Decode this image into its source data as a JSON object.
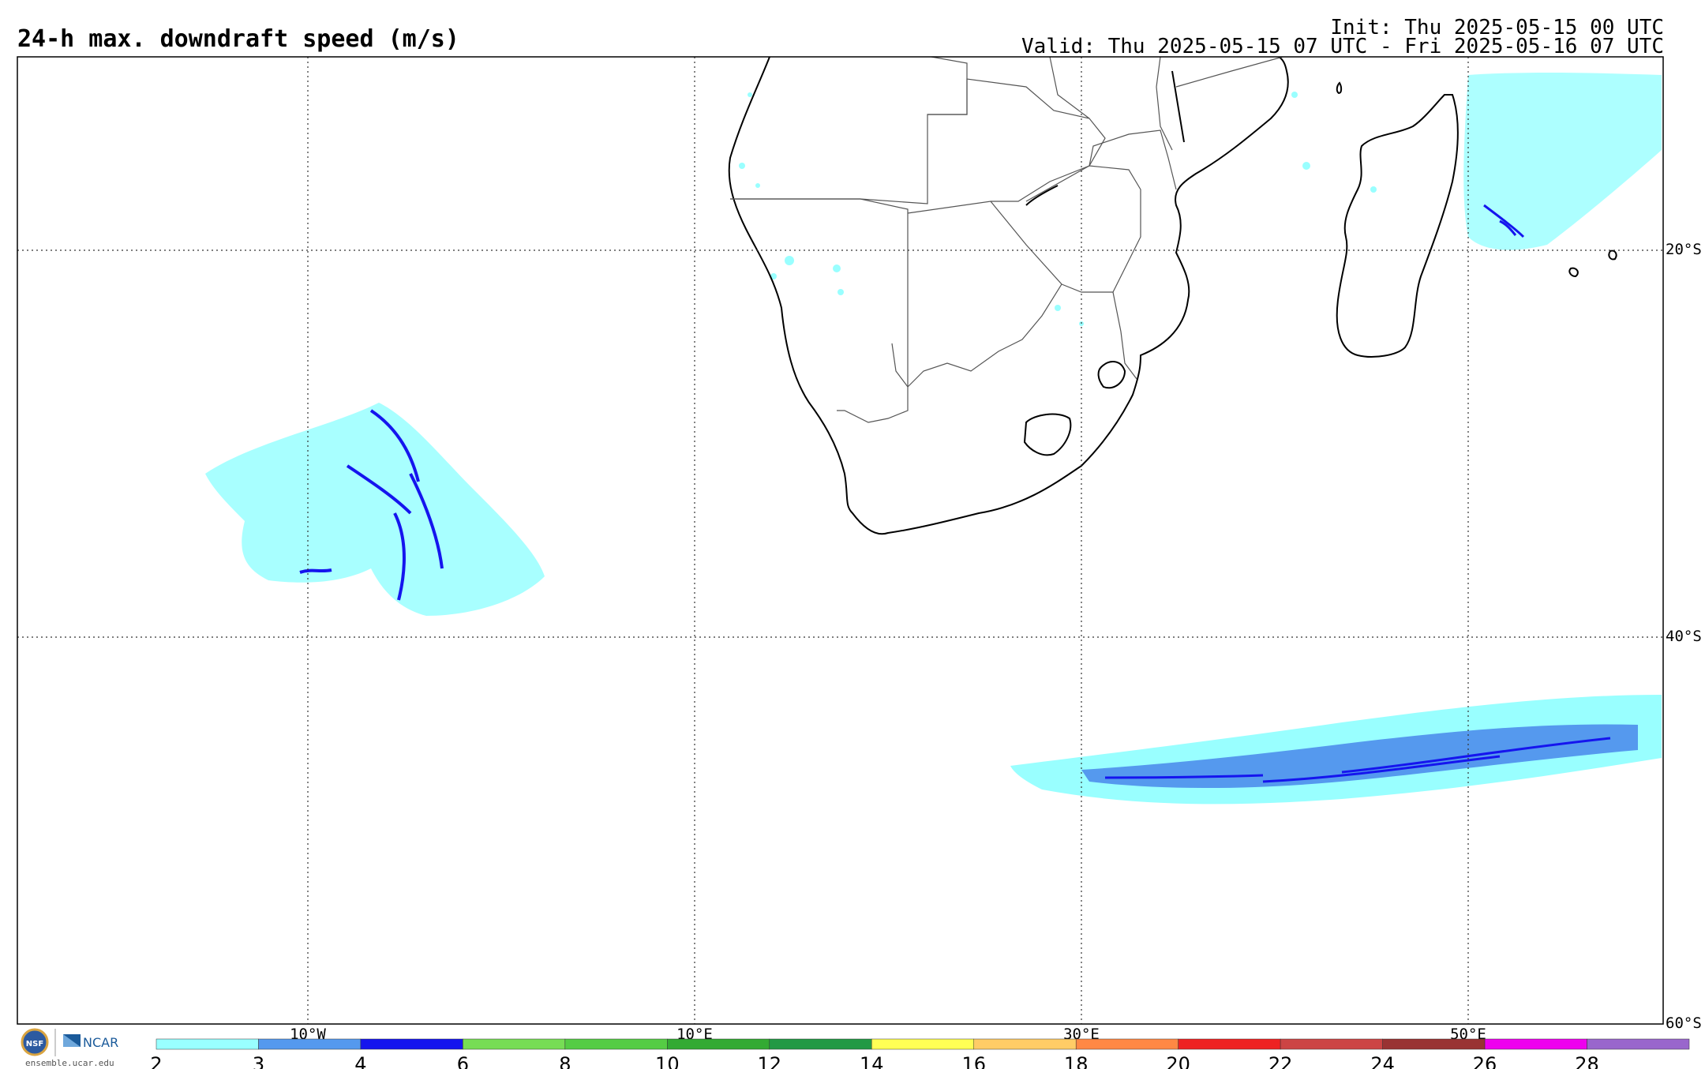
{
  "header": {
    "title": "24-h max. downdraft speed (m/s)",
    "init": "Init: Thu 2025-05-15 00 UTC",
    "valid": "Valid: Thu 2025-05-15 07 UTC - Fri 2025-05-16 07 UTC"
  },
  "map": {
    "lon_range": [
      -25,
      60
    ],
    "lat_range": [
      -60,
      -10
    ],
    "lon_labels": [
      "10°W",
      "10°E",
      "30°E",
      "50°E"
    ],
    "lat_labels": [
      "20°S",
      "40°S",
      "60°S"
    ],
    "gridlines": "dotted"
  },
  "colorbar": {
    "unit": "m/s",
    "ticks": [
      "2",
      "3",
      "4",
      "6",
      "8",
      "10",
      "12",
      "14",
      "16",
      "18",
      "20",
      "22",
      "24",
      "26",
      "28"
    ],
    "colors": [
      "#99ffff",
      "#5599ee",
      "#1515ee",
      "#77dd55",
      "#55cc44",
      "#33aa33",
      "#229944",
      "#ffff55",
      "#ffcc66",
      "#ff8844",
      "#ee2222",
      "#cc4444",
      "#993333",
      "#ee00ee",
      "#9966cc"
    ]
  },
  "logos": {
    "nsf": "NSF",
    "ncar": "NCAR",
    "url": "ensemble.ucar.edu"
  }
}
